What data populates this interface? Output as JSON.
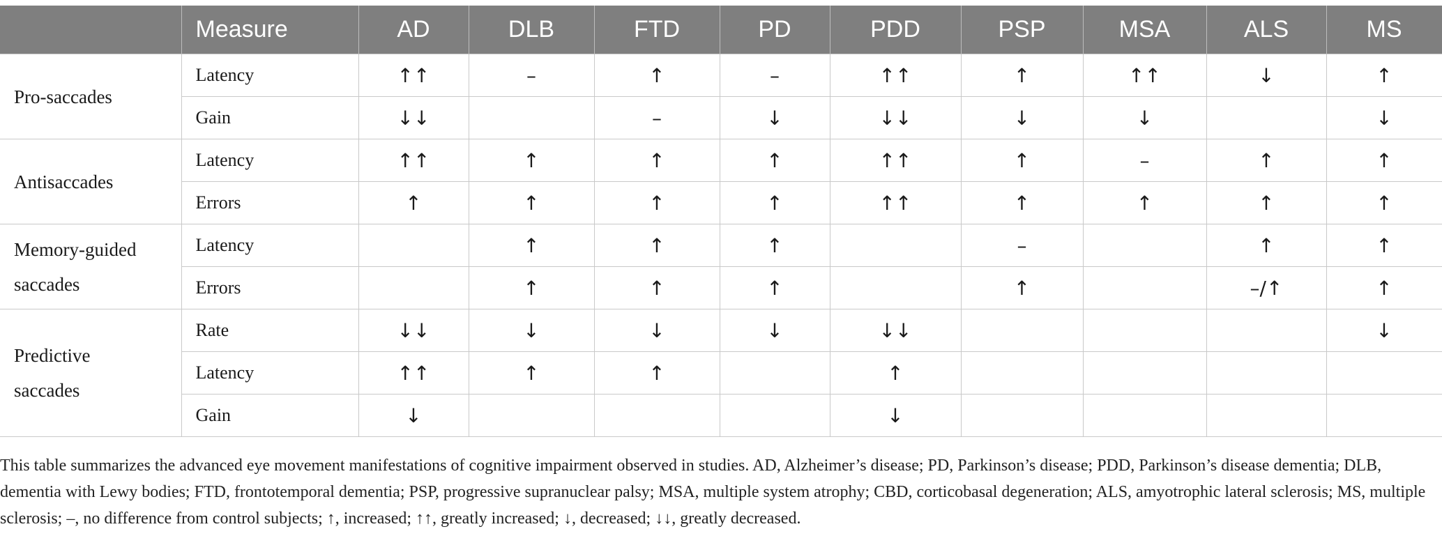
{
  "table": {
    "headers": [
      "",
      "Measure",
      "AD",
      "DLB",
      "FTD",
      "PD",
      "PDD",
      "PSP",
      "MSA",
      "ALS",
      "MS"
    ],
    "groups": [
      {
        "name": "Pro-saccades",
        "rows": [
          {
            "measure": "Latency",
            "values": [
              "↑↑",
              "–",
              "↑",
              "–",
              "↑↑",
              "↑",
              "↑↑",
              "↓",
              "↑"
            ]
          },
          {
            "measure": "Gain",
            "values": [
              "↓↓",
              "",
              "–",
              "↓",
              "↓↓",
              "↓",
              "↓",
              "",
              "↓"
            ]
          }
        ]
      },
      {
        "name": "Antisaccades",
        "rows": [
          {
            "measure": "Latency",
            "values": [
              "↑↑",
              "↑",
              "↑",
              "↑",
              "↑↑",
              "↑",
              "–",
              "↑",
              "↑"
            ]
          },
          {
            "measure": "Errors",
            "values": [
              "↑",
              "↑",
              "↑",
              "↑",
              "↑↑",
              "↑",
              "↑",
              "↑",
              "↑"
            ]
          }
        ]
      },
      {
        "name": "Memory-guided saccades",
        "rows": [
          {
            "measure": "Latency",
            "values": [
              "",
              "↑",
              "↑",
              "↑",
              "",
              "–",
              "",
              "↑",
              "↑"
            ]
          },
          {
            "measure": "Errors",
            "values": [
              "",
              "↑",
              "↑",
              "↑",
              "",
              "↑",
              "",
              "–/↑",
              "↑"
            ]
          }
        ]
      },
      {
        "name": "Predictive saccades",
        "rows": [
          {
            "measure": "Rate",
            "values": [
              "↓↓",
              "↓",
              "↓",
              "↓",
              "↓↓",
              "",
              "",
              "",
              "↓"
            ]
          },
          {
            "measure": "Latency",
            "values": [
              "↑↑",
              "↑",
              "↑",
              "",
              "↑",
              "",
              "",
              "",
              ""
            ]
          },
          {
            "measure": "Gain",
            "values": [
              "↓",
              "",
              "",
              "",
              "↓",
              "",
              "",
              "",
              ""
            ]
          }
        ]
      }
    ]
  },
  "footnote": "This table summarizes the advanced eye movement manifestations of cognitive impairment observed in studies. AD, Alzheimer’s disease; PD, Parkinson’s disease; PDD, Parkinson’s disease dementia; DLB, dementia with Lewy bodies; FTD, frontotemporal dementia; PSP, progressive supranuclear palsy; MSA, multiple system atrophy; CBD, corticobasal degeneration; ALS, amyotrophic lateral sclerosis; MS, multiple sclerosis; –, no difference from control subjects; ↑, increased; ↑↑, greatly increased; ↓, decreased; ↓↓, greatly decreased."
}
